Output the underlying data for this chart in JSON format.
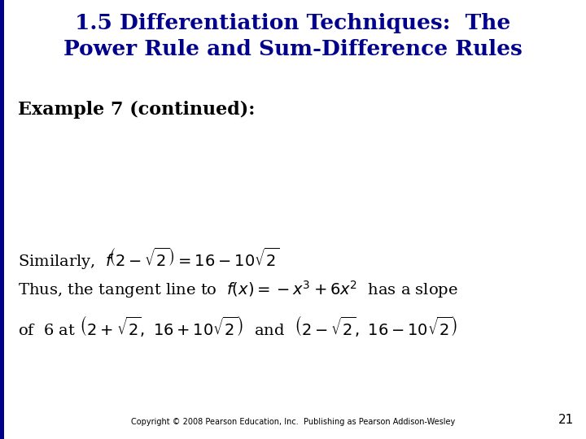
{
  "title_line1": "1.5 Differentiation Techniques:  The",
  "title_line2": "Power Rule and Sum-Difference Rules",
  "title_color": "#00008B",
  "title_fontsize": 19,
  "title_bold": true,
  "example_text": "Example 7 (continued):",
  "example_fontsize": 16,
  "example_bold": true,
  "example_color": "#000000",
  "body_fontsize": 13,
  "body_color": "#000000",
  "math_fontsize": 14,
  "copyright_text": "Copyright © 2008 Pearson Education, Inc.  Publishing as Pearson Addison-Wesley",
  "copyright_fontsize": 7,
  "copyright_color": "#000000",
  "page_number": "21",
  "page_number_fontsize": 11,
  "page_number_color": "#000000",
  "left_bar_color": "#00008B",
  "left_bar_width": 0.007,
  "background_color": "#FFFFFF"
}
